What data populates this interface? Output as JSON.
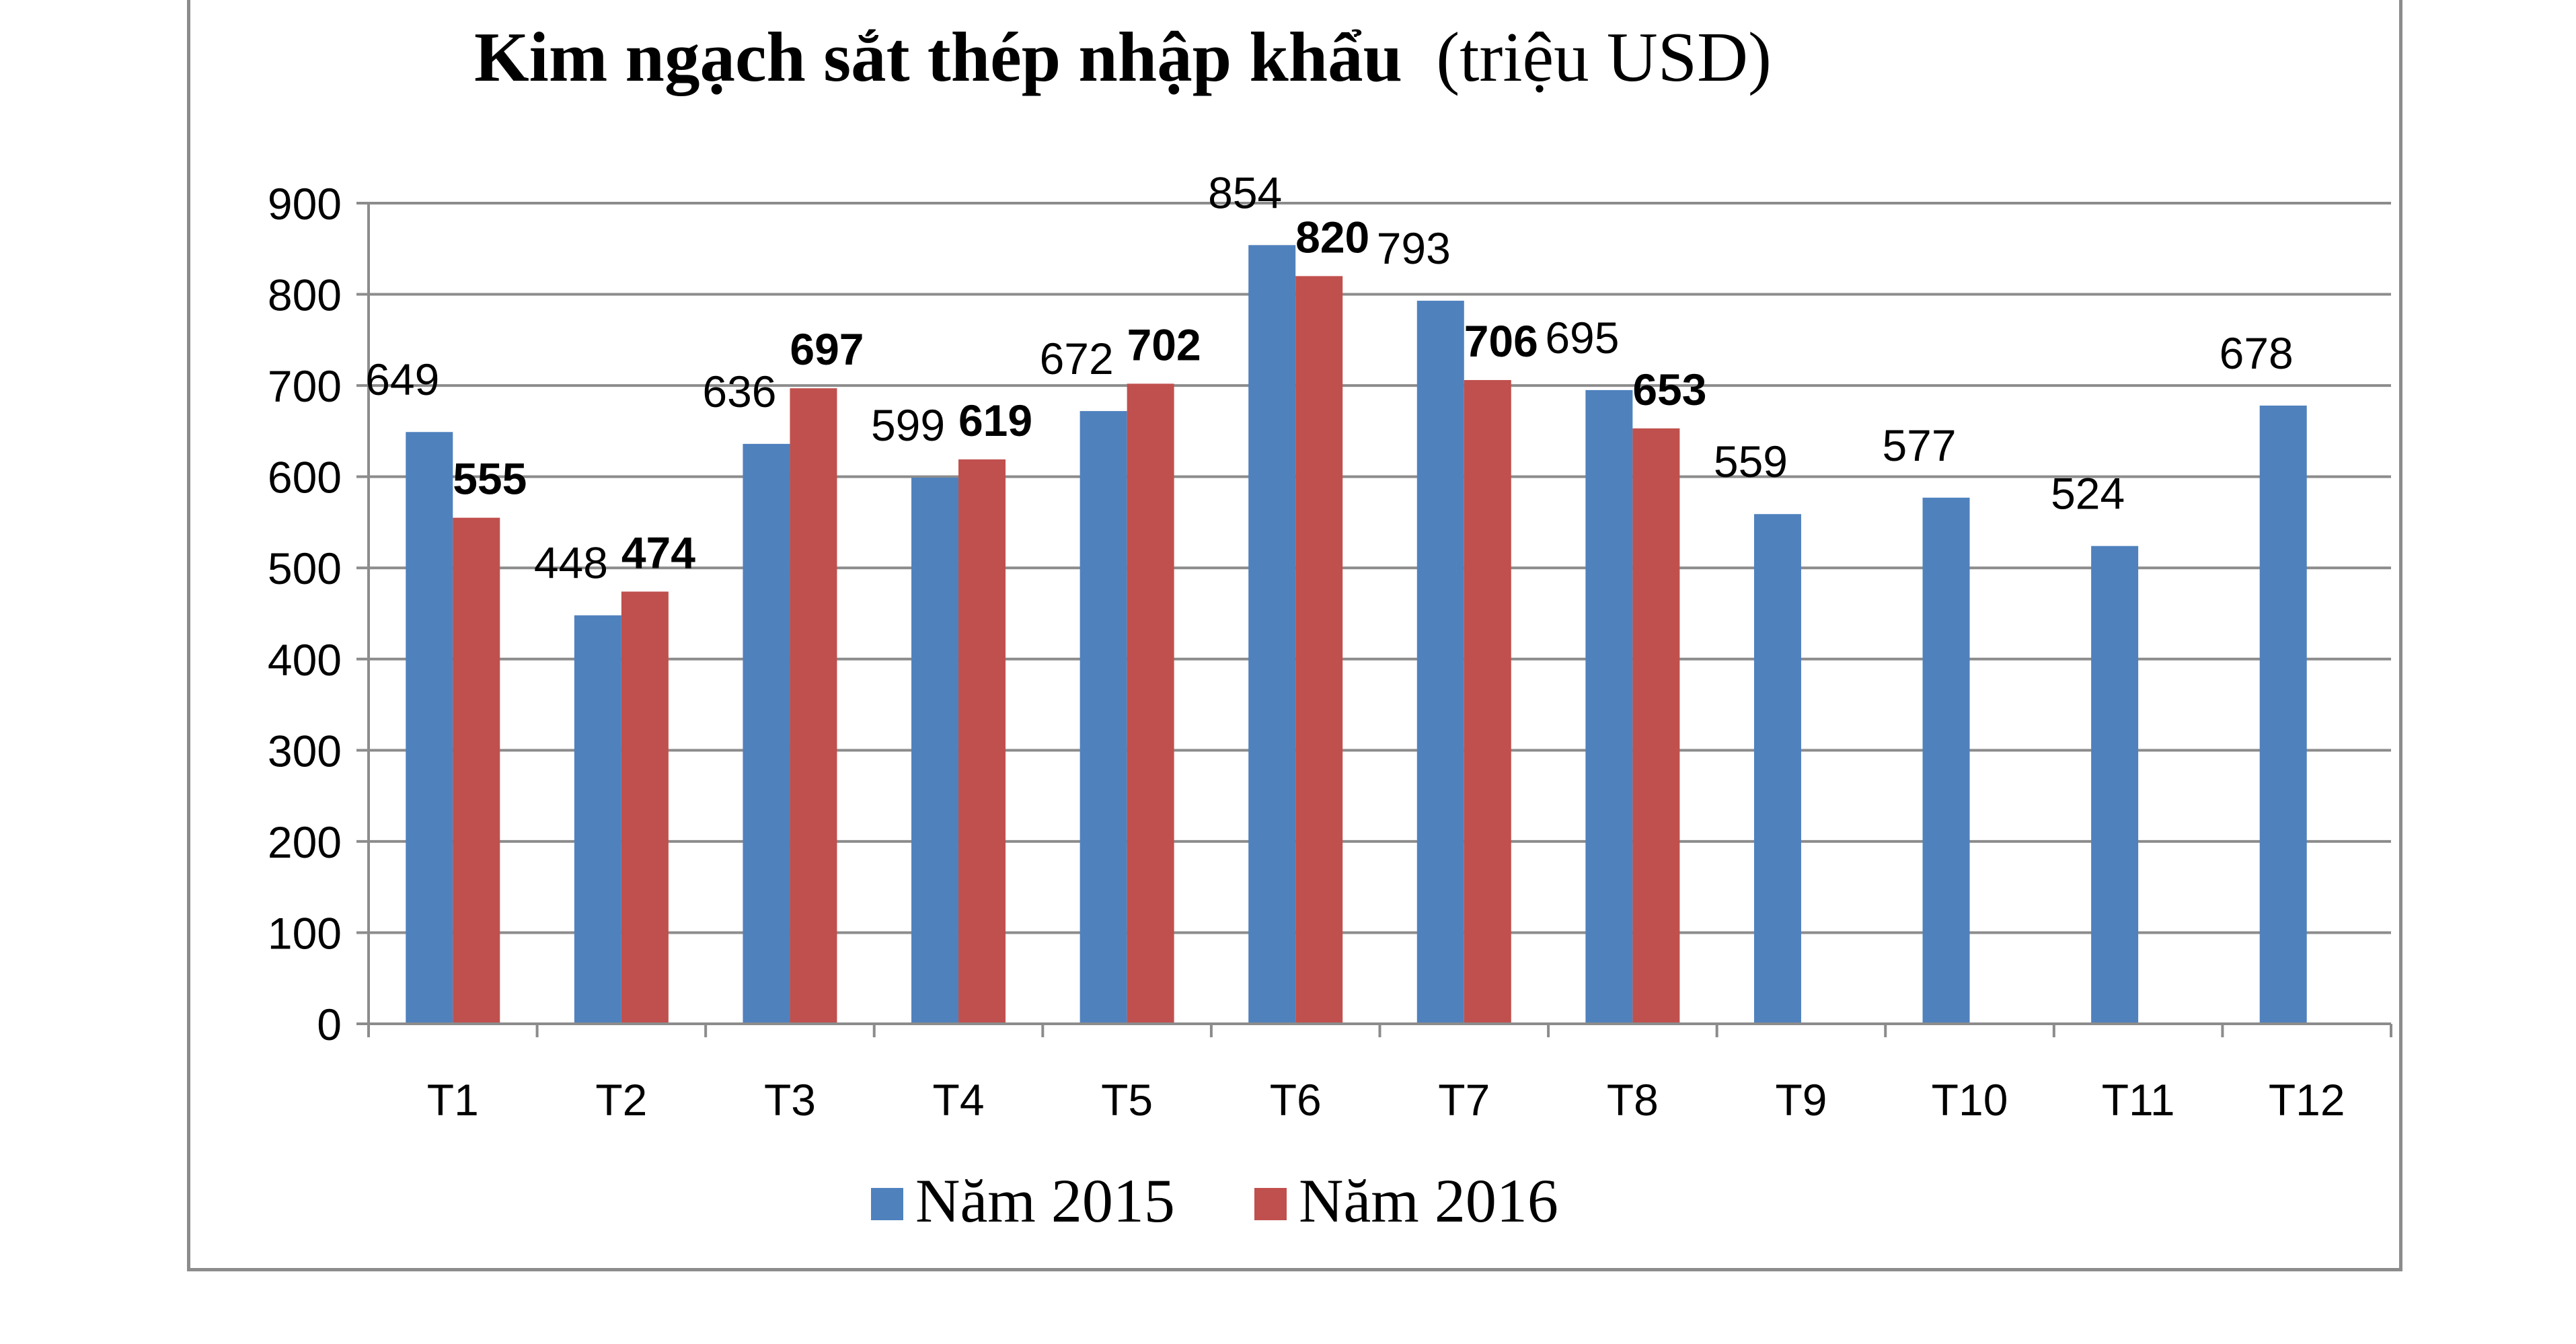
{
  "chart_data": {
    "type": "bar",
    "title_bold": "Kim ngạch sắt thép nhập khẩu",
    "title_normal": "(triệu USD)",
    "xlabel": "",
    "ylabel": "",
    "ylim": [
      0,
      900
    ],
    "yticks": [
      "0",
      "100",
      "200",
      "300",
      "400",
      "500",
      "600",
      "700",
      "800",
      "900"
    ],
    "ytick_values": [
      0,
      100,
      200,
      300,
      400,
      500,
      600,
      700,
      800,
      900
    ],
    "grid": true,
    "legend_position": "bottom",
    "categories": [
      "T1",
      "T2",
      "T3",
      "T4",
      "T5",
      "T6",
      "T7",
      "T8",
      "T9",
      "T10",
      "T11",
      "T12"
    ],
    "series": [
      {
        "name": "Năm 2015",
        "color": "#4f81bd",
        "values": [
          649,
          448,
          636,
          599,
          672,
          854,
          793,
          695,
          559,
          577,
          524,
          678
        ],
        "labels": [
          "649",
          "448",
          "636",
          "599",
          "672",
          "854",
          "793",
          "695",
          "559",
          "577",
          "524",
          "678"
        ]
      },
      {
        "name": "Năm 2016",
        "color": "#c0504d",
        "values": [
          555,
          474,
          697,
          619,
          702,
          820,
          706,
          653,
          null,
          null,
          null,
          null
        ],
        "labels": [
          "555",
          "474",
          "697",
          "619",
          "702",
          "820",
          "706",
          "653",
          "",
          "",
          "",
          ""
        ]
      }
    ]
  }
}
